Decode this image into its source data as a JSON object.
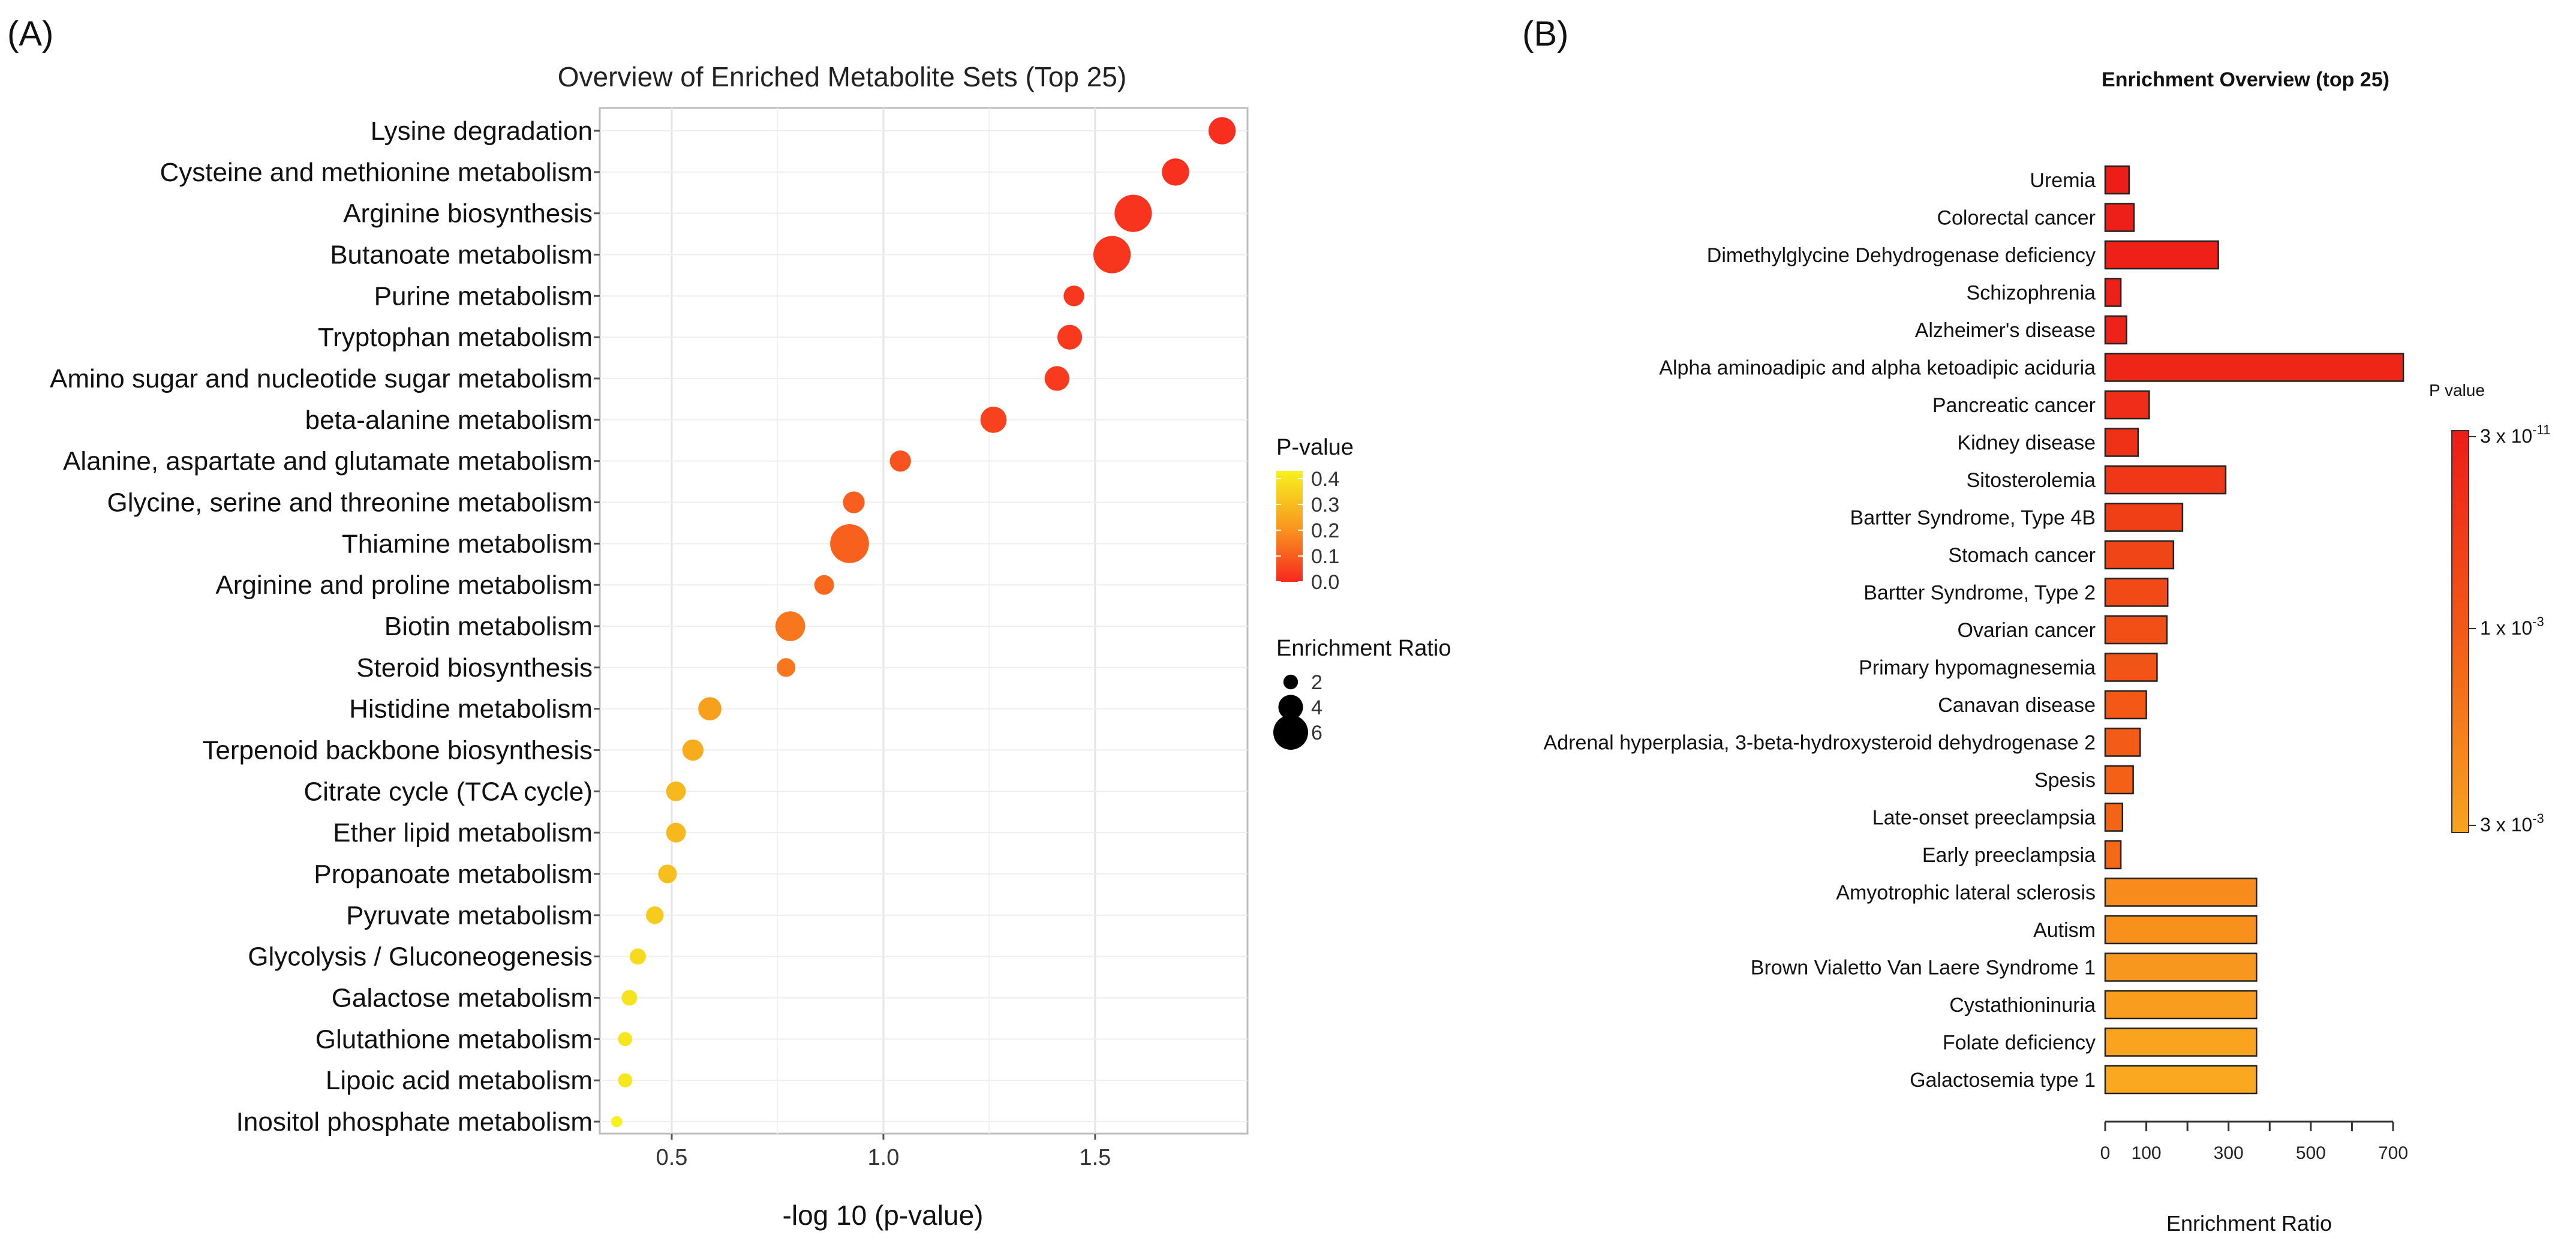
{
  "panel_a_label": "(A)",
  "panel_b_label": "(B)",
  "chart_data": [
    {
      "type": "scatter",
      "title": "Overview of Enriched Metabolite Sets (Top 25)",
      "xlabel": "-log 10 (p-value)",
      "ylabel": "",
      "xlim": [
        0.33,
        1.86
      ],
      "xticks": [
        0.5,
        1.0,
        1.5
      ],
      "xtick_labels": [
        "0.5",
        "1.0",
        "1.5"
      ],
      "grid": true,
      "categories": [
        "Lysine degradation",
        "Cysteine and methionine metabolism",
        "Arginine biosynthesis",
        "Butanoate metabolism",
        "Purine metabolism",
        "Tryptophan metabolism",
        "Amino sugar and nucleotide sugar metabolism",
        "beta-alanine metabolism",
        "Alanine, aspartate and glutamate metabolism",
        "Glycine, serine and threonine metabolism",
        "Thiamine metabolism",
        "Arginine and proline metabolism",
        "Biotin metabolism",
        "Steroid biosynthesis",
        "Histidine metabolism",
        "Terpenoid backbone biosynthesis",
        "Citrate cycle (TCA cycle)",
        "Ether lipid metabolism",
        "Propanoate metabolism",
        "Pyruvate metabolism",
        "Glycolysis / Gluconeogenesis",
        "Galactose metabolism",
        "Glutathione metabolism",
        "Lipoic acid metabolism",
        "Inositol phosphate metabolism"
      ],
      "neg_log10_p": [
        1.8,
        1.69,
        1.59,
        1.54,
        1.45,
        1.44,
        1.41,
        1.26,
        1.04,
        0.93,
        0.92,
        0.86,
        0.78,
        0.77,
        0.59,
        0.55,
        0.51,
        0.51,
        0.49,
        0.46,
        0.42,
        0.4,
        0.39,
        0.39,
        0.37
      ],
      "p_value": [
        0.016,
        0.02,
        0.026,
        0.029,
        0.035,
        0.036,
        0.039,
        0.055,
        0.091,
        0.117,
        0.12,
        0.138,
        0.166,
        0.17,
        0.257,
        0.282,
        0.309,
        0.309,
        0.324,
        0.347,
        0.38,
        0.398,
        0.407,
        0.407,
        0.427
      ],
      "enrichment_ratio": [
        4.5,
        4.5,
        6.5,
        6.5,
        3.2,
        4.0,
        4.0,
        4.3,
        3.3,
        3.4,
        6.8,
        3.0,
        5.0,
        2.8,
        3.7,
        3.3,
        3.0,
        3.0,
        2.8,
        2.6,
        2.3,
        2.2,
        1.9,
        1.9,
        1.3
      ],
      "color_legend": {
        "title": "P-value",
        "ticks": [
          "0.4",
          "0.3",
          "0.2",
          "0.1",
          "0.0"
        ],
        "tick_values": [
          0.4,
          0.3,
          0.2,
          0.1,
          0.0
        ],
        "range": [
          0.0,
          0.43
        ],
        "low_color": "#f8281e",
        "high_color": "#f7f11e"
      },
      "size_legend": {
        "title": "Enrichment Ratio",
        "values": [
          2,
          4,
          6
        ],
        "labels": [
          "2",
          "4",
          "6"
        ]
      }
    },
    {
      "type": "bar",
      "orientation": "horizontal",
      "title": "Enrichment Overview (top 25)",
      "xlabel": "Enrichment Ratio",
      "xlim": [
        0,
        700
      ],
      "xticks": [
        0,
        100,
        300,
        500,
        700
      ],
      "xtick_labels": [
        "0",
        "100",
        "300",
        "500",
        "700"
      ],
      "minor_xticks": [
        0,
        100,
        200,
        300,
        400,
        500,
        600,
        700
      ],
      "categories": [
        "Uremia",
        "Colorectal cancer",
        "Dimethylglycine Dehydrogenase deficiency",
        "Schizophrenia",
        "Alzheimer's disease",
        "Alpha aminoadipic and alpha ketoadipic aciduria",
        "Pancreatic cancer",
        "Kidney disease",
        "Sitosterolemia",
        "Bartter Syndrome, Type 4B",
        "Stomach cancer",
        "Bartter Syndrome, Type 2",
        "Ovarian cancer",
        "Primary hypomagnesemia",
        "Canavan disease",
        "Adrenal hyperplasia, 3-beta-hydroxysteroid dehydrogenase 2",
        "Spesis",
        "Late-onset preeclampsia",
        "Early preeclampsia",
        "Amyotrophic lateral sclerosis",
        "Autism",
        "Brown Vialetto Van Laere Syndrome 1",
        "Cystathioninuria",
        "Folate deficiency",
        "Galactosemia type 1"
      ],
      "values": [
        58,
        70,
        275,
        38,
        52,
        725,
        107,
        80,
        293,
        188,
        166,
        152,
        150,
        126,
        100,
        85,
        68,
        42,
        38,
        368,
        368,
        368,
        368,
        368,
        368
      ],
      "bar_colors": [
        "#ee1d18",
        "#ee1f18",
        "#ee2018",
        "#ee2118",
        "#ee2218",
        "#ef2518",
        "#ef2d18",
        "#ef3118",
        "#f03818",
        "#f03f17",
        "#f04517",
        "#f14a17",
        "#f24f17",
        "#f25417",
        "#f35817",
        "#f35c16",
        "#f36016",
        "#f46416",
        "#f46816",
        "#f78b1c",
        "#f8911c",
        "#f8971d",
        "#f99d1e",
        "#f9a31f",
        "#faa820"
      ],
      "colorbar": {
        "title": "P value",
        "labels": [
          "3 x 10",
          "1 x 10",
          "3 x 10"
        ],
        "exponents": [
          "-11",
          "-3",
          "-3"
        ],
        "top_color": "#ee1b18",
        "bottom_color": "#f7a41f"
      }
    }
  ]
}
